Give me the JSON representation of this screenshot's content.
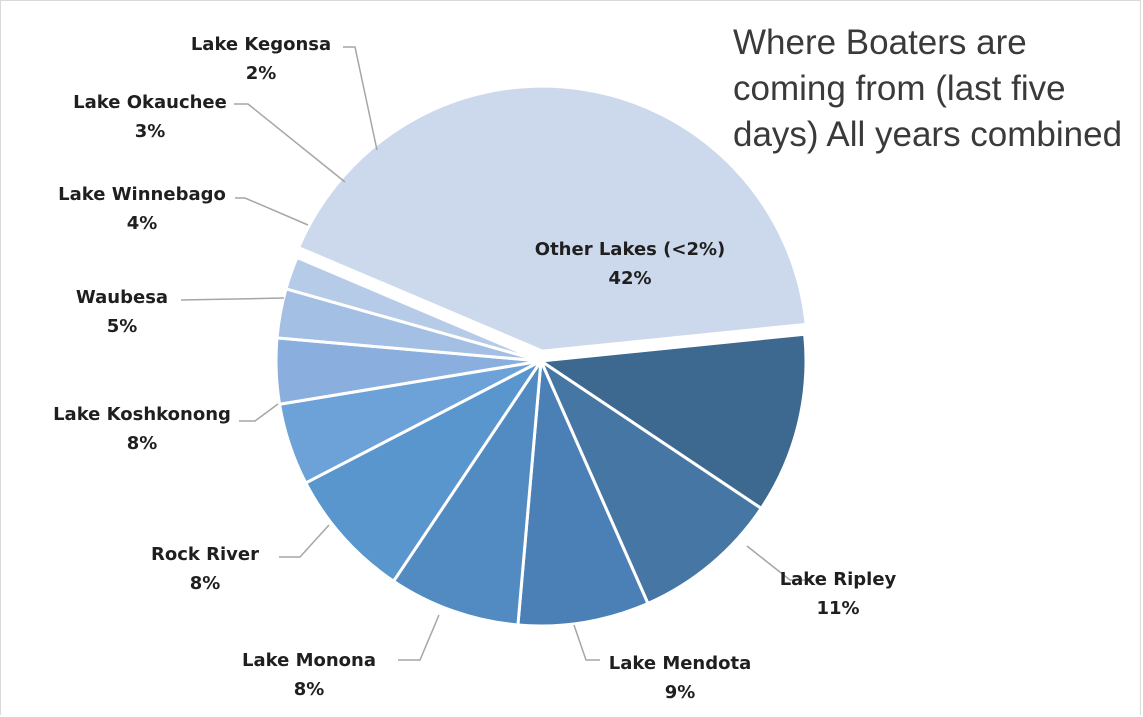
{
  "chart_data": {
    "type": "pie",
    "title": "Where Boaters are coming from (last five days) All years combined",
    "slices": [
      {
        "name": "Other Lakes (<2%)",
        "value": 42,
        "label": "42%",
        "color": "#ccd9ec"
      },
      {
        "name": "Lake Ripley",
        "value": 11,
        "label": "11%",
        "color": "#3d688f"
      },
      {
        "name": "Lake Mendota",
        "value": 9,
        "label": "9%",
        "color": "#4676a4"
      },
      {
        "name": "Lake Monona",
        "value": 8,
        "label": "8%",
        "color": "#4b80b6"
      },
      {
        "name": "Rock River",
        "value": 8,
        "label": "8%",
        "color": "#518bc1"
      },
      {
        "name": "Lake Koshkonong",
        "value": 8,
        "label": "8%",
        "color": "#5896cd"
      },
      {
        "name": "Waubesa",
        "value": 5,
        "label": "5%",
        "color": "#6ca2d7"
      },
      {
        "name": "Lake Winnebago",
        "value": 4,
        "label": "4%",
        "color": "#8aaedd"
      },
      {
        "name": "Lake Okauchee",
        "value": 3,
        "label": "3%",
        "color": "#a4bfe4"
      },
      {
        "name": "Lake Kegonsa",
        "value": 2,
        "label": "2%",
        "color": "#b6cbe8"
      }
    ]
  }
}
